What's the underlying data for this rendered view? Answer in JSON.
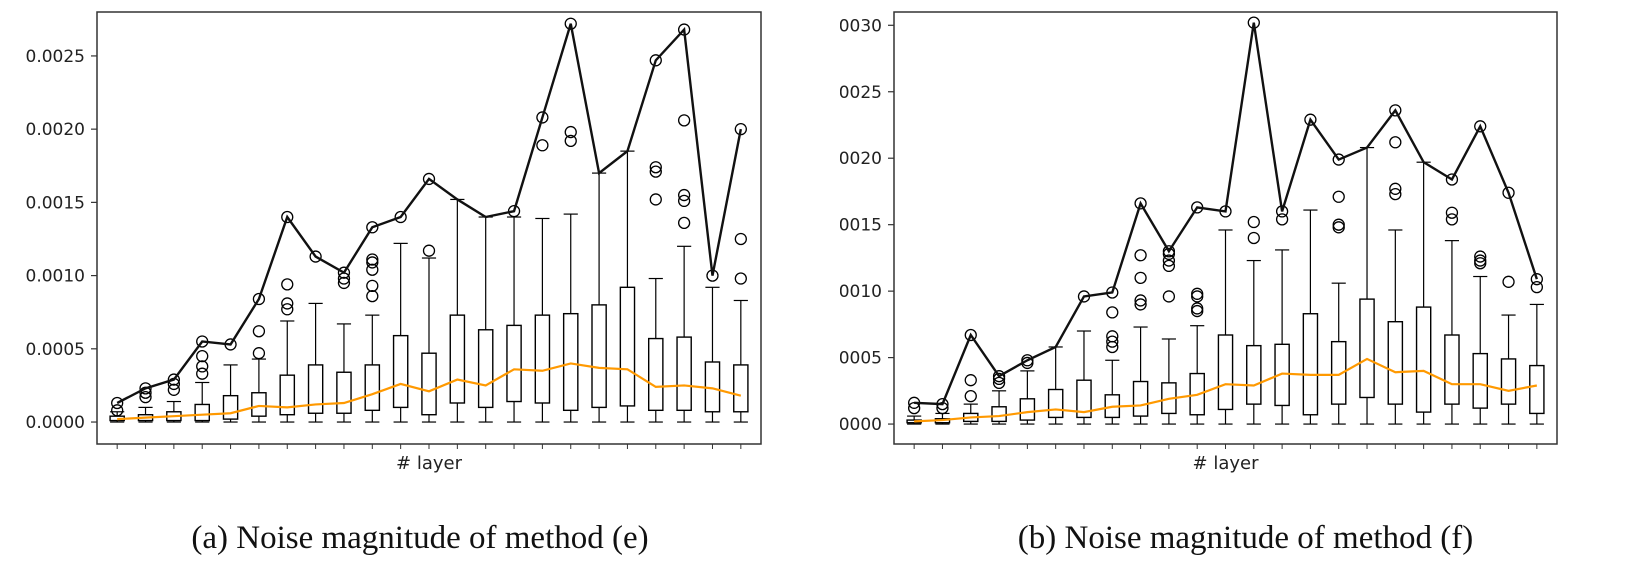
{
  "captions": {
    "a": "(a) Noise magnitude of method (e)",
    "b": "(b) Noise magnitude of method (f)"
  },
  "colors": {
    "box": "#000000",
    "max_line": "#111111",
    "median_line": "#ff9900",
    "axes": "#333333"
  },
  "chart_data": [
    {
      "type": "box",
      "xlabel": "# layer",
      "ylabel": "",
      "ylim": [
        -0.00015,
        0.0028
      ],
      "yticks": [
        "0.0000",
        "0.0005",
        "0.0010",
        "0.0015",
        "0.0020",
        "0.0025"
      ],
      "grid": false,
      "layers": [
        {
          "q1": 1e-05,
          "q3": 4e-05,
          "low": 0.0,
          "high": 7e-05,
          "max": 0.00013,
          "outliers": [
            8e-05
          ]
        },
        {
          "q1": 1e-05,
          "q3": 5e-05,
          "low": 0.0,
          "high": 0.0001,
          "max": 0.00023,
          "outliers": [
            0.00017,
            0.0002
          ]
        },
        {
          "q1": 1e-05,
          "q3": 7e-05,
          "low": 0.0,
          "high": 0.00014,
          "max": 0.00029,
          "outliers": [
            0.00022,
            0.00026
          ]
        },
        {
          "q1": 1e-05,
          "q3": 0.00012,
          "low": 0.0,
          "high": 0.00027,
          "max": 0.00055,
          "outliers": [
            0.00033,
            0.00038,
            0.00045
          ]
        },
        {
          "q1": 2e-05,
          "q3": 0.00018,
          "low": 0.0,
          "high": 0.00039,
          "max": 0.00053,
          "outliers": []
        },
        {
          "q1": 4e-05,
          "q3": 0.0002,
          "low": 0.0,
          "high": 0.00043,
          "max": 0.00084,
          "outliers": [
            0.00047,
            0.00062
          ]
        },
        {
          "q1": 5e-05,
          "q3": 0.00032,
          "low": 0.0,
          "high": 0.00069,
          "max": 0.0014,
          "outliers": [
            0.00077,
            0.00081,
            0.00094
          ]
        },
        {
          "q1": 6e-05,
          "q3": 0.00039,
          "low": 0.0,
          "high": 0.00081,
          "max": 0.00113,
          "outliers": []
        },
        {
          "q1": 6e-05,
          "q3": 0.00034,
          "low": 0.0,
          "high": 0.00067,
          "max": 0.00102,
          "outliers": [
            0.00095,
            0.00098
          ]
        },
        {
          "q1": 8e-05,
          "q3": 0.00039,
          "low": 0.0,
          "high": 0.00073,
          "max": 0.00133,
          "outliers": [
            0.00086,
            0.00093,
            0.00104,
            0.00109,
            0.00111
          ]
        },
        {
          "q1": 0.0001,
          "q3": 0.00059,
          "low": 0.0,
          "high": 0.00122,
          "max": 0.0014,
          "outliers": []
        },
        {
          "q1": 5e-05,
          "q3": 0.00047,
          "low": 0.0,
          "high": 0.00112,
          "max": 0.00166,
          "outliers": [
            0.00117
          ]
        },
        {
          "q1": 0.00013,
          "q3": 0.00073,
          "low": 0.0,
          "high": 0.00152,
          "max": null,
          "outliers": []
        },
        {
          "q1": 0.0001,
          "q3": 0.00063,
          "low": 0.0,
          "high": 0.0014,
          "max": null,
          "outliers": []
        },
        {
          "q1": 0.00014,
          "q3": 0.00066,
          "low": 0.0,
          "high": 0.0014,
          "max": 0.00144,
          "outliers": []
        },
        {
          "q1": 0.00013,
          "q3": 0.00073,
          "low": 0.0,
          "high": 0.00139,
          "max": 0.00208,
          "outliers": [
            0.00189
          ]
        },
        {
          "q1": 8e-05,
          "q3": 0.00074,
          "low": 0.0,
          "high": 0.00142,
          "max": 0.00272,
          "outliers": [
            0.00192,
            0.00198
          ]
        },
        {
          "q1": 0.0001,
          "q3": 0.0008,
          "low": 0.0,
          "high": 0.0017,
          "max": null,
          "outliers": []
        },
        {
          "q1": 0.00011,
          "q3": 0.00092,
          "low": 0.0,
          "high": 0.00185,
          "max": null,
          "outliers": []
        },
        {
          "q1": 8e-05,
          "q3": 0.00057,
          "low": 0.0,
          "high": 0.00098,
          "max": 0.00247,
          "outliers": [
            0.00152,
            0.00171,
            0.00174
          ]
        },
        {
          "q1": 8e-05,
          "q3": 0.00058,
          "low": 0.0,
          "high": 0.0012,
          "max": 0.00268,
          "outliers": [
            0.00136,
            0.00151,
            0.00155,
            0.00206
          ]
        },
        {
          "q1": 7e-05,
          "q3": 0.00041,
          "low": 0.0,
          "high": 0.00092,
          "max": 0.001,
          "outliers": []
        },
        {
          "q1": 7e-05,
          "q3": 0.00039,
          "low": 0.0,
          "high": 0.00083,
          "max": 0.002,
          "outliers": [
            0.00098,
            0.00125
          ]
        }
      ],
      "max_line": [
        0.00013,
        0.00023,
        0.00029,
        0.00055,
        0.00053,
        0.00084,
        0.0014,
        0.00113,
        0.00102,
        0.00133,
        0.0014,
        0.00166,
        0.00152,
        0.0014,
        0.00144,
        0.00208,
        0.00272,
        0.0017,
        0.00185,
        0.00247,
        0.00268,
        0.001,
        0.002
      ],
      "median_line": [
        2e-05,
        3e-05,
        4e-05,
        5e-05,
        6e-05,
        0.00011,
        0.0001,
        0.00012,
        0.00013,
        0.00019,
        0.00026,
        0.00021,
        0.00029,
        0.00025,
        0.00036,
        0.00035,
        0.0004,
        0.00037,
        0.00036,
        0.00024,
        0.00025,
        0.00023,
        0.00018
      ]
    },
    {
      "type": "box",
      "xlabel": "# layer",
      "ylabel": "",
      "ylim": [
        -0.00015,
        0.0031
      ],
      "yticks": [
        "0.0000",
        "0.0005",
        "0.0010",
        "0.0015",
        "0.0020",
        "0.0025",
        "0.0030"
      ],
      "grid": false,
      "layers": [
        {
          "q1": 1e-05,
          "q3": 3e-05,
          "low": 0.0,
          "high": 6e-05,
          "max": 0.00016,
          "outliers": [
            0.00012
          ]
        },
        {
          "q1": 1e-05,
          "q3": 4e-05,
          "low": 0.0,
          "high": 8e-05,
          "max": 0.00015,
          "outliers": [
            0.00012
          ]
        },
        {
          "q1": 2e-05,
          "q3": 8e-05,
          "low": 0.0,
          "high": 0.00015,
          "max": 0.00067,
          "outliers": [
            0.00021,
            0.00033
          ]
        },
        {
          "q1": 2e-05,
          "q3": 0.00013,
          "low": 0.0,
          "high": 0.00025,
          "max": 0.00036,
          "outliers": [
            0.00031,
            0.00034
          ]
        },
        {
          "q1": 3e-05,
          "q3": 0.00019,
          "low": 0.0,
          "high": 0.0004,
          "max": 0.00048,
          "outliers": [
            0.00046
          ]
        },
        {
          "q1": 5e-05,
          "q3": 0.00026,
          "low": 0.0,
          "high": 0.00058,
          "max": null,
          "outliers": []
        },
        {
          "q1": 5e-05,
          "q3": 0.00033,
          "low": 0.0,
          "high": 0.0007,
          "max": 0.00096,
          "outliers": []
        },
        {
          "q1": 5e-05,
          "q3": 0.00022,
          "low": 0.0,
          "high": 0.00048,
          "max": 0.00099,
          "outliers": [
            0.00058,
            0.00062,
            0.00066,
            0.00084
          ]
        },
        {
          "q1": 6e-05,
          "q3": 0.00032,
          "low": 0.0,
          "high": 0.00073,
          "max": 0.00166,
          "outliers": [
            0.0009,
            0.00093,
            0.0011,
            0.00127
          ]
        },
        {
          "q1": 8e-05,
          "q3": 0.00031,
          "low": 0.0,
          "high": 0.00064,
          "max": 0.0013,
          "outliers": [
            0.00096,
            0.00119,
            0.00123,
            0.00128
          ]
        },
        {
          "q1": 7e-05,
          "q3": 0.00038,
          "low": 0.0,
          "high": 0.00074,
          "max": 0.00163,
          "outliers": [
            0.00085,
            0.00087,
            0.00096,
            0.00098
          ]
        },
        {
          "q1": 0.00011,
          "q3": 0.00067,
          "low": 0.0,
          "high": 0.00146,
          "max": 0.0016,
          "outliers": []
        },
        {
          "q1": 0.00015,
          "q3": 0.00059,
          "low": 0.0,
          "high": 0.00123,
          "max": 0.00302,
          "outliers": [
            0.0014,
            0.00152
          ]
        },
        {
          "q1": 0.00014,
          "q3": 0.0006,
          "low": 0.0,
          "high": 0.00131,
          "max": 0.0016,
          "outliers": [
            0.00154
          ]
        },
        {
          "q1": 7e-05,
          "q3": 0.00083,
          "low": 0.0,
          "high": 0.00161,
          "max": 0.00229,
          "outliers": []
        },
        {
          "q1": 0.00015,
          "q3": 0.00062,
          "low": 0.0,
          "high": 0.00106,
          "max": 0.00199,
          "outliers": [
            0.00148,
            0.0015,
            0.00171
          ]
        },
        {
          "q1": 0.0002,
          "q3": 0.00094,
          "low": 0.0,
          "high": 0.00208,
          "max": null,
          "outliers": []
        },
        {
          "q1": 0.00015,
          "q3": 0.00077,
          "low": 0.0,
          "high": 0.00146,
          "max": 0.00236,
          "outliers": [
            0.00173,
            0.00177,
            0.00212
          ]
        },
        {
          "q1": 9e-05,
          "q3": 0.00088,
          "low": 0.0,
          "high": 0.00197,
          "max": null,
          "outliers": []
        },
        {
          "q1": 0.00015,
          "q3": 0.00067,
          "low": 0.0,
          "high": 0.00138,
          "max": 0.00184,
          "outliers": [
            0.00154,
            0.00159
          ]
        },
        {
          "q1": 0.00012,
          "q3": 0.00053,
          "low": 0.0,
          "high": 0.00111,
          "max": 0.00224,
          "outliers": [
            0.00121,
            0.00123,
            0.00126
          ]
        },
        {
          "q1": 0.00015,
          "q3": 0.00049,
          "low": 0.0,
          "high": 0.00082,
          "max": 0.00174,
          "outliers": [
            0.00107
          ]
        },
        {
          "q1": 8e-05,
          "q3": 0.00044,
          "low": 0.0,
          "high": 0.0009,
          "max": 0.00109,
          "outliers": [
            0.00103
          ]
        }
      ],
      "max_line": [
        0.00016,
        0.00015,
        0.00067,
        0.00036,
        0.00048,
        0.00058,
        0.00096,
        0.00099,
        0.00166,
        0.0013,
        0.00163,
        0.0016,
        0.00302,
        0.0016,
        0.00229,
        0.00199,
        0.00208,
        0.00236,
        0.00197,
        0.00184,
        0.00224,
        0.00174,
        0.00109
      ],
      "median_line": [
        2e-05,
        3e-05,
        5e-05,
        6e-05,
        9e-05,
        0.00011,
        9e-05,
        0.00013,
        0.00014,
        0.00019,
        0.00022,
        0.0003,
        0.00029,
        0.00038,
        0.00037,
        0.00037,
        0.00049,
        0.00039,
        0.0004,
        0.0003,
        0.0003,
        0.00025,
        0.00029
      ]
    }
  ]
}
